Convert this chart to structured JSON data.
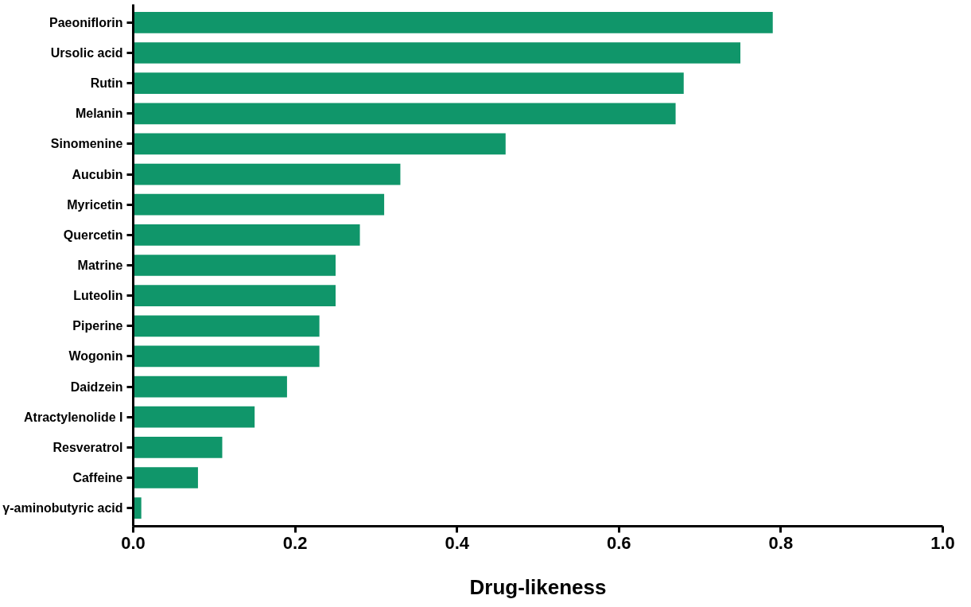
{
  "chart_data": {
    "type": "bar",
    "orientation": "horizontal",
    "xlabel": "Drug-likeness",
    "categories": [
      "Paeoniflorin",
      "Ursolic acid",
      "Rutin",
      "Melanin",
      "Sinomenine",
      "Aucubin",
      "Myricetin",
      "Quercetin",
      "Matrine",
      "Luteolin",
      "Piperine",
      "Wogonin",
      "Daidzein",
      "Atractylenolide I",
      "Resveratrol",
      "Caffeine",
      "γ-aminobutyric acid"
    ],
    "values": [
      0.79,
      0.75,
      0.68,
      0.67,
      0.46,
      0.33,
      0.31,
      0.28,
      0.25,
      0.25,
      0.23,
      0.23,
      0.19,
      0.15,
      0.11,
      0.08,
      0.01
    ],
    "color": "#10966a",
    "xlim": [
      0,
      1
    ],
    "xticks": [
      {
        "value": 0,
        "label": "0.0"
      },
      0.2,
      0.4,
      0.6,
      0.8,
      {
        "value": 1,
        "label": "1.0"
      }
    ],
    "grid": false
  }
}
